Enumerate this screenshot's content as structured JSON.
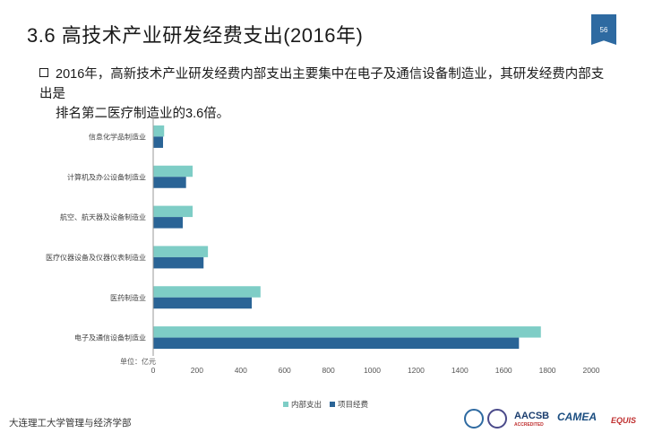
{
  "slide": {
    "title": "3.6  高技术产业研发经费支出(2016年)",
    "page_number": "56",
    "bullet_line1": "2016年，高新技术产业研发经费内部支出主要集中在电子及通信设备制造业，其研发经费内部支出是",
    "bullet_line2": "排名第二医疗制造业的3.6倍。",
    "footer": "大连理工大学管理与经济学部"
  },
  "logos": {
    "aacsb": "AACSB",
    "aacsb_sub": "ACCREDITED",
    "camea": "CAMEA",
    "equis": "EQUIS"
  },
  "colors": {
    "series1": "#7ecdc6",
    "series2": "#2a6496",
    "accent": "#2e6aa1"
  },
  "chart_data": {
    "type": "bar",
    "orientation": "horizontal",
    "categories": [
      "信息化学品制造业",
      "计算机及办公设备制造业",
      "航空、航天器及设备制造业",
      "医疗仪器设备及仪器仪表制造业",
      "医药制造业",
      "电子及通信设备制造业"
    ],
    "series": [
      {
        "name": "内部支出",
        "values": [
          50,
          180,
          180,
          250,
          490,
          1770
        ]
      },
      {
        "name": "项目经费",
        "values": [
          45,
          150,
          135,
          230,
          450,
          1670
        ]
      }
    ],
    "xlim": [
      0,
      2000
    ],
    "xticks": [
      0,
      200,
      400,
      600,
      800,
      1000,
      1200,
      1400,
      1600,
      1800,
      2000
    ],
    "unit_label": "单位：亿元",
    "legend_position": "bottom",
    "grid": false
  }
}
